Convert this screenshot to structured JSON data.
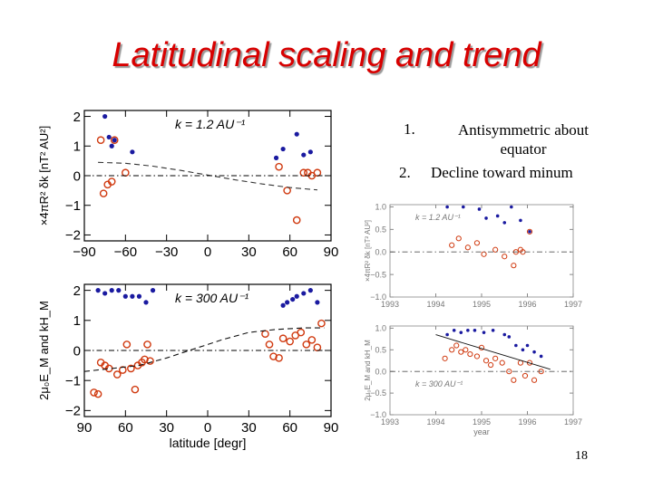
{
  "slide": {
    "title": "Latitudinal scaling and trend",
    "notes": [
      {
        "num": "1.",
        "text_line1": "Antisymmetric about",
        "text_line2": "equator"
      },
      {
        "num": "2.",
        "text_line1": "Decline toward minum"
      }
    ],
    "page_number": "18"
  },
  "colors": {
    "title": "#d80000",
    "blue_points": "#1a1aa0",
    "red_circles": "#d03a10"
  },
  "chart_data": [
    {
      "id": "top-left",
      "type": "scatter",
      "annotation": "k = 1.2 AU⁻¹",
      "ylabel": "×4πR² δk [nT² AU²]",
      "xlabel": "",
      "xlim": [
        -90,
        90
      ],
      "ylim": [
        -2.2,
        2.2
      ],
      "xticks": [
        -90,
        -60,
        -30,
        0,
        30,
        60,
        90
      ],
      "xtick_labels": [
        "−90",
        "−60",
        "−30",
        "0",
        "30",
        "60",
        "90"
      ],
      "yticks": [
        -2,
        -1,
        0,
        1,
        2
      ],
      "ytick_labels": [
        "−2",
        "−1",
        "0",
        "1",
        "2"
      ],
      "series": [
        {
          "marker": "dot",
          "color": "#1a1aa0",
          "x": [
            -75,
            -72,
            -70,
            -68,
            -55,
            50,
            55,
            65,
            70,
            75
          ],
          "y": [
            2.0,
            1.3,
            1.0,
            1.2,
            0.8,
            0.6,
            0.9,
            1.4,
            0.7,
            0.8
          ]
        },
        {
          "marker": "circle",
          "color": "#d03a10",
          "x": [
            -78,
            -76,
            -73,
            -70,
            -68,
            -60,
            52,
            58,
            65,
            70,
            73,
            76,
            80
          ],
          "y": [
            1.2,
            -0.6,
            -0.3,
            -0.2,
            1.2,
            0.1,
            0.3,
            -0.5,
            -1.5,
            0.1,
            0.1,
            0.0,
            0.1
          ]
        },
        {
          "marker": "line",
          "style": "dashed",
          "color": "#333333",
          "x": [
            -80,
            -60,
            -40,
            -20,
            0,
            20,
            40,
            60,
            80
          ],
          "y": [
            0.45,
            0.42,
            0.32,
            0.18,
            0.02,
            -0.14,
            -0.28,
            -0.4,
            -0.48
          ]
        },
        {
          "marker": "line",
          "style": "dashdot",
          "color": "#000000",
          "x": [
            -90,
            90
          ],
          "y": [
            0,
            0
          ]
        }
      ]
    },
    {
      "id": "bottom-left",
      "type": "scatter",
      "annotation": "k = 300 AU⁻¹",
      "ylabel": "2μ₀E_M and kH_M",
      "xlabel": "latitude [degr]",
      "xlim": [
        -90,
        90
      ],
      "ylim": [
        -2.2,
        2.2
      ],
      "xticks": [
        -90,
        -60,
        -30,
        0,
        30,
        60,
        90
      ],
      "xtick_labels": [
        "90",
        "60",
        "30",
        "0",
        "30",
        "60",
        "90"
      ],
      "yticks": [
        -2,
        -1,
        0,
        1,
        2
      ],
      "ytick_labels": [
        "−2",
        "−1",
        "0",
        "1",
        "2"
      ],
      "series": [
        {
          "marker": "dot",
          "color": "#1a1aa0",
          "x": [
            -80,
            -75,
            -70,
            -65,
            -60,
            -55,
            -50,
            -45,
            -40,
            55,
            58,
            62,
            65,
            70,
            75,
            80
          ],
          "y": [
            2.0,
            1.9,
            2.0,
            2.0,
            1.8,
            1.8,
            1.8,
            1.6,
            2.0,
            1.5,
            1.6,
            1.7,
            1.8,
            1.9,
            2.0,
            1.6
          ]
        },
        {
          "marker": "circle",
          "color": "#d03a10",
          "x": [
            -83,
            -80,
            -78,
            -75,
            -72,
            -66,
            -62,
            -59,
            -56,
            -53,
            -51,
            -48,
            -46,
            -44,
            -42,
            42,
            45,
            48,
            52,
            55,
            60,
            64,
            68,
            72,
            76,
            80,
            83
          ],
          "y": [
            -1.4,
            -1.45,
            -0.4,
            -0.5,
            -0.6,
            -0.8,
            -0.65,
            0.2,
            -0.6,
            -1.3,
            -0.5,
            -0.4,
            -0.3,
            0.2,
            -0.35,
            0.55,
            0.2,
            -0.2,
            -0.25,
            0.4,
            0.3,
            0.5,
            0.6,
            0.2,
            0.35,
            0.1,
            0.9
          ]
        },
        {
          "marker": "line",
          "style": "dashed",
          "color": "#111111",
          "x": [
            -90,
            -70,
            -50,
            -30,
            -10,
            0,
            10,
            30,
            50,
            70,
            85
          ],
          "y": [
            -0.7,
            -0.6,
            -0.5,
            -0.25,
            0.05,
            0.2,
            0.35,
            0.6,
            0.7,
            0.75,
            0.75
          ]
        },
        {
          "marker": "line",
          "style": "dashdot",
          "color": "#000000",
          "x": [
            -90,
            90
          ],
          "y": [
            0,
            0
          ]
        }
      ]
    },
    {
      "id": "top-right",
      "type": "scatter",
      "annotation": "k = 1.2 AU⁻¹",
      "ylabel": "×4πR² δk [nT² AU²]",
      "xlabel": "",
      "xlim": [
        1993,
        1997
      ],
      "ylim": [
        -1.0,
        1.05
      ],
      "xticks": [
        1993,
        1994,
        1995,
        1996,
        1997
      ],
      "xtick_labels": [
        "1993",
        "1994",
        "1995",
        "1996",
        "1997"
      ],
      "yticks": [
        -1.0,
        -0.5,
        0.0,
        0.5,
        1.0
      ],
      "ytick_labels": [
        "−1.0",
        "−0.5",
        "0.0",
        "0.5",
        "1.0"
      ],
      "series": [
        {
          "marker": "dot",
          "color": "#1a1aa0",
          "x": [
            1994.25,
            1994.6,
            1994.95,
            1995.1,
            1995.35,
            1995.5,
            1995.65,
            1995.85,
            1996.05
          ],
          "y": [
            1.0,
            1.0,
            0.95,
            0.75,
            0.8,
            0.65,
            1.0,
            0.7,
            0.45
          ]
        },
        {
          "marker": "circle",
          "color": "#d03a10",
          "x": [
            1994.35,
            1994.5,
            1994.7,
            1994.9,
            1995.05,
            1995.3,
            1995.5,
            1995.7,
            1995.75,
            1995.85,
            1995.9,
            1996.05
          ],
          "y": [
            0.15,
            0.3,
            0.1,
            0.2,
            -0.05,
            0.05,
            -0.1,
            -0.3,
            0.0,
            0.05,
            0.0,
            0.45
          ]
        },
        {
          "marker": "line",
          "style": "dashdot",
          "color": "#555555",
          "x": [
            1993,
            1997
          ],
          "y": [
            0,
            0
          ]
        }
      ]
    },
    {
      "id": "bottom-right",
      "type": "scatter",
      "annotation": "k = 300 AU⁻¹",
      "ylabel": "2μ₀E_M and kH_M",
      "xlabel": "year",
      "xlim": [
        1993,
        1997
      ],
      "ylim": [
        -1.0,
        1.05
      ],
      "xticks": [
        1993,
        1994,
        1995,
        1996,
        1997
      ],
      "xtick_labels": [
        "1993",
        "1994",
        "1995",
        "1996",
        "1997"
      ],
      "yticks": [
        -1.0,
        -0.5,
        0.0,
        0.5,
        1.0
      ],
      "ytick_labels": [
        "−1.0",
        "−0.5",
        "0.0",
        "0.5",
        "1.0"
      ],
      "series": [
        {
          "marker": "dot",
          "color": "#1a1aa0",
          "x": [
            1994.25,
            1994.4,
            1994.55,
            1994.7,
            1994.85,
            1995.05,
            1995.25,
            1995.5,
            1995.6,
            1995.75,
            1995.9,
            1996.0,
            1996.15,
            1996.3
          ],
          "y": [
            0.85,
            0.95,
            0.9,
            0.95,
            0.95,
            0.9,
            0.95,
            0.85,
            0.8,
            0.6,
            0.5,
            0.6,
            0.45,
            0.35
          ]
        },
        {
          "marker": "circle",
          "color": "#d03a10",
          "x": [
            1994.2,
            1994.35,
            1994.45,
            1994.55,
            1994.65,
            1994.75,
            1994.9,
            1995.0,
            1995.1,
            1995.2,
            1995.3,
            1995.45,
            1995.6,
            1995.7,
            1995.85,
            1995.95,
            1996.05,
            1996.15,
            1996.3
          ],
          "y": [
            0.3,
            0.5,
            0.6,
            0.45,
            0.5,
            0.4,
            0.35,
            0.55,
            0.25,
            0.15,
            0.3,
            0.2,
            0.0,
            -0.2,
            0.2,
            -0.1,
            0.2,
            -0.2,
            0.0
          ]
        },
        {
          "marker": "line",
          "style": "solid",
          "color": "#111111",
          "x": [
            1994.0,
            1996.5
          ],
          "y": [
            0.85,
            0.05
          ]
        },
        {
          "marker": "line",
          "style": "dashdot",
          "color": "#555555",
          "x": [
            1993,
            1997
          ],
          "y": [
            0,
            0
          ]
        }
      ]
    }
  ]
}
